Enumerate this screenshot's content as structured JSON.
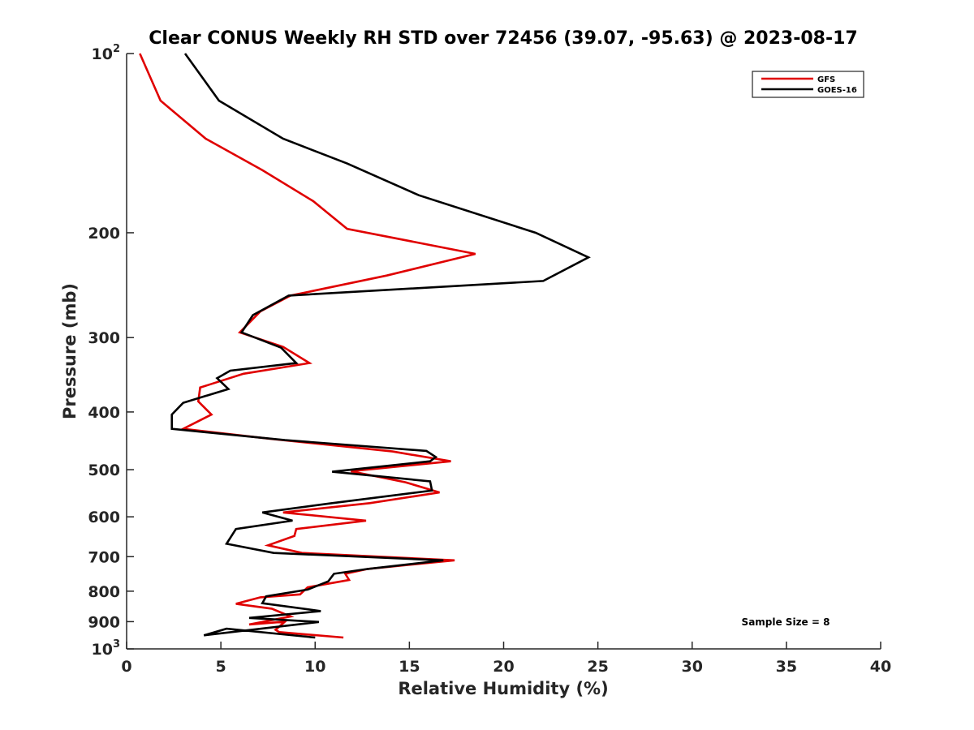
{
  "chart_data": {
    "type": "line",
    "title": "Clear CONUS Weekly RH STD over 72456 (39.07, -95.63) @ 2023-08-17",
    "xlabel": "Relative Humidity (%)",
    "ylabel": "Pressure (mb)",
    "xlim": [
      0,
      40
    ],
    "ylim": [
      100,
      1000
    ],
    "yscale": "log",
    "yreversed": true,
    "grid": false,
    "xticks": [
      0,
      5,
      10,
      15,
      20,
      25,
      30,
      35,
      40
    ],
    "xtick_labels": [
      "0",
      "5",
      "10",
      "15",
      "20",
      "25",
      "30",
      "35",
      "40"
    ],
    "yticks": [
      100,
      200,
      300,
      400,
      500,
      600,
      700,
      800,
      900,
      1000
    ],
    "ytick_labels": [
      {
        "base": "10",
        "exp": "2"
      },
      {
        "base": "200",
        "exp": ""
      },
      {
        "base": "300",
        "exp": ""
      },
      {
        "base": "400",
        "exp": ""
      },
      {
        "base": "500",
        "exp": ""
      },
      {
        "base": "600",
        "exp": ""
      },
      {
        "base": "700",
        "exp": ""
      },
      {
        "base": "800",
        "exp": ""
      },
      {
        "base": "900",
        "exp": ""
      },
      {
        "base": "10",
        "exp": "3"
      }
    ],
    "legend": {
      "position": "top-right",
      "entries": [
        "GFS",
        "GOES-16"
      ]
    },
    "annotation": "Sample Size = 8",
    "series": [
      {
        "name": "GFS",
        "color": "#e00000",
        "points": [
          [
            0.7,
            100
          ],
          [
            1.8,
            120
          ],
          [
            4.2,
            139
          ],
          [
            7.2,
            157
          ],
          [
            9.9,
            177
          ],
          [
            11.7,
            197
          ],
          [
            18.5,
            217
          ],
          [
            13.8,
            236
          ],
          [
            8.7,
            255
          ],
          [
            7.1,
            271
          ],
          [
            6.0,
            294
          ],
          [
            8.3,
            311
          ],
          [
            9.7,
            331
          ],
          [
            6.2,
            345
          ],
          [
            3.9,
            364
          ],
          [
            3.8,
            384
          ],
          [
            4.5,
            404
          ],
          [
            3.0,
            427
          ],
          [
            7.7,
            444
          ],
          [
            14.1,
            466
          ],
          [
            17.2,
            484
          ],
          [
            11.9,
            503
          ],
          [
            14.8,
            525
          ],
          [
            16.6,
            546
          ],
          [
            12.9,
            569
          ],
          [
            8.3,
            590
          ],
          [
            12.7,
            609
          ],
          [
            9.0,
            629
          ],
          [
            8.9,
            646
          ],
          [
            7.5,
            670
          ],
          [
            9.3,
            690
          ],
          [
            17.4,
            710
          ],
          [
            12.8,
            734
          ],
          [
            11.6,
            748
          ],
          [
            11.8,
            766
          ],
          [
            9.6,
            788
          ],
          [
            9.2,
            810
          ],
          [
            7.1,
            819
          ],
          [
            5.8,
            840
          ],
          [
            7.7,
            856
          ],
          [
            8.7,
            882
          ],
          [
            6.5,
            910
          ],
          [
            8.4,
            900
          ],
          [
            7.9,
            929
          ],
          [
            8.1,
            937
          ],
          [
            11.5,
            957
          ]
        ]
      },
      {
        "name": "GOES-16",
        "color": "#000000",
        "points": [
          [
            3.1,
            100
          ],
          [
            4.9,
            120
          ],
          [
            8.3,
            139
          ],
          [
            11.7,
            153
          ],
          [
            15.5,
            173
          ],
          [
            21.7,
            200
          ],
          [
            24.5,
            220
          ],
          [
            22.1,
            241
          ],
          [
            8.6,
            255
          ],
          [
            6.7,
            275
          ],
          [
            6.1,
            294
          ],
          [
            8.2,
            312
          ],
          [
            9.0,
            331
          ],
          [
            5.5,
            341
          ],
          [
            4.8,
            351
          ],
          [
            5.4,
            366
          ],
          [
            3.0,
            386
          ],
          [
            2.4,
            404
          ],
          [
            2.4,
            427
          ],
          [
            8.4,
            446
          ],
          [
            15.9,
            465
          ],
          [
            16.4,
            476
          ],
          [
            16.1,
            484
          ],
          [
            10.9,
            504
          ],
          [
            16.1,
            523
          ],
          [
            16.2,
            542
          ],
          [
            10.9,
            569
          ],
          [
            7.2,
            590
          ],
          [
            8.8,
            609
          ],
          [
            5.8,
            629
          ],
          [
            5.3,
            666
          ],
          [
            7.8,
            690
          ],
          [
            16.8,
            710
          ],
          [
            12.8,
            734
          ],
          [
            11.0,
            748
          ],
          [
            10.7,
            770
          ],
          [
            9.6,
            795
          ],
          [
            7.4,
            816
          ],
          [
            7.2,
            838
          ],
          [
            10.3,
            864
          ],
          [
            6.5,
            887
          ],
          [
            10.2,
            901
          ],
          [
            4.1,
            949
          ],
          [
            5.3,
            925
          ],
          [
            10.0,
            957
          ]
        ]
      }
    ]
  }
}
